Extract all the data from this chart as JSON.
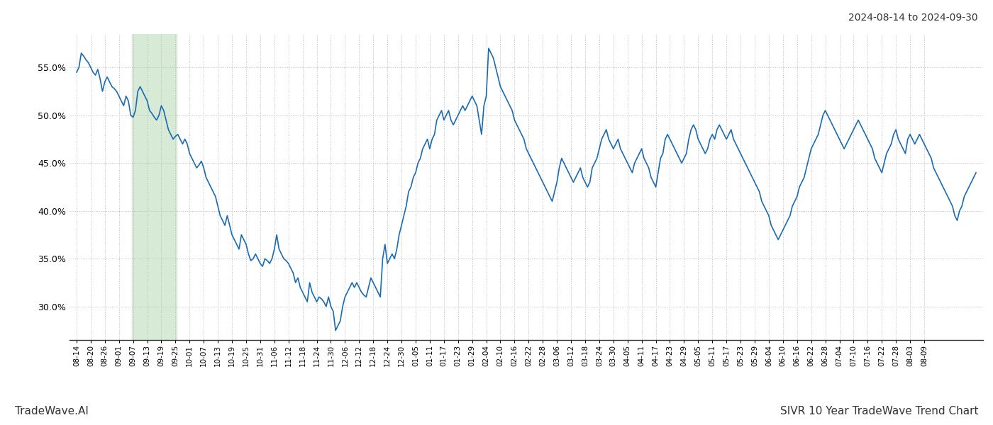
{
  "title_top_right": "2024-08-14 to 2024-09-30",
  "footer_left": "TradeWave.AI",
  "footer_right": "SIVR 10 Year TradeWave Trend Chart",
  "background_color": "#ffffff",
  "line_color": "#1b6bb0",
  "line_width": 1.2,
  "highlight_color": "#d6ead6",
  "ylim": [
    26.5,
    58.5
  ],
  "yticks": [
    30.0,
    35.0,
    40.0,
    45.0,
    50.0,
    55.0
  ],
  "x_labels": [
    "08-14",
    "08-20",
    "08-26",
    "09-01",
    "09-07",
    "09-13",
    "09-19",
    "09-25",
    "10-01",
    "10-07",
    "10-13",
    "10-19",
    "10-25",
    "10-31",
    "11-06",
    "11-12",
    "11-18",
    "11-24",
    "11-30",
    "12-06",
    "12-12",
    "12-18",
    "12-24",
    "12-30",
    "01-05",
    "01-11",
    "01-17",
    "01-23",
    "01-29",
    "02-04",
    "02-10",
    "02-16",
    "02-22",
    "02-28",
    "03-06",
    "03-12",
    "03-18",
    "03-24",
    "03-30",
    "04-05",
    "04-11",
    "04-17",
    "04-23",
    "04-29",
    "05-05",
    "05-11",
    "05-17",
    "05-23",
    "05-29",
    "06-04",
    "06-10",
    "06-16",
    "06-22",
    "06-28",
    "07-04",
    "07-10",
    "07-16",
    "07-22",
    "07-28",
    "08-03",
    "08-09"
  ],
  "values": [
    54.5,
    55.0,
    56.5,
    56.2,
    55.8,
    55.5,
    55.0,
    54.5,
    54.2,
    54.8,
    53.8,
    52.5,
    53.5,
    54.0,
    53.5,
    53.0,
    52.8,
    52.5,
    52.0,
    51.5,
    51.0,
    52.0,
    51.5,
    50.0,
    49.8,
    50.5,
    52.5,
    53.0,
    52.5,
    52.0,
    51.5,
    50.5,
    50.2,
    49.8,
    49.5,
    50.0,
    51.0,
    50.5,
    49.5,
    48.5,
    48.0,
    47.5,
    47.8,
    48.0,
    47.5,
    47.0,
    47.5,
    47.0,
    46.0,
    45.5,
    45.0,
    44.5,
    44.8,
    45.2,
    44.5,
    43.5,
    43.0,
    42.5,
    42.0,
    41.5,
    40.5,
    39.5,
    39.0,
    38.5,
    39.5,
    38.5,
    37.5,
    37.0,
    36.5,
    36.0,
    37.5,
    37.0,
    36.5,
    35.5,
    34.8,
    35.0,
    35.5,
    35.0,
    34.5,
    34.2,
    35.0,
    34.8,
    34.5,
    35.0,
    36.0,
    37.5,
    36.0,
    35.5,
    35.0,
    34.8,
    34.5,
    34.0,
    33.5,
    32.5,
    33.0,
    32.0,
    31.5,
    31.0,
    30.5,
    32.5,
    31.5,
    31.0,
    30.5,
    31.0,
    30.8,
    30.5,
    30.0,
    31.0,
    30.0,
    29.5,
    27.5,
    28.0,
    28.5,
    30.0,
    31.0,
    31.5,
    32.0,
    32.5,
    32.0,
    32.5,
    32.0,
    31.5,
    31.2,
    31.0,
    32.0,
    33.0,
    32.5,
    32.0,
    31.5,
    31.0,
    35.0,
    36.5,
    34.5,
    35.0,
    35.5,
    35.0,
    36.0,
    37.5,
    38.5,
    39.5,
    40.5,
    42.0,
    42.5,
    43.5,
    44.0,
    45.0,
    45.5,
    46.5,
    47.0,
    47.5,
    46.5,
    47.5,
    48.0,
    49.5,
    50.0,
    50.5,
    49.5,
    50.0,
    50.5,
    49.5,
    49.0,
    49.5,
    50.0,
    50.5,
    51.0,
    50.5,
    51.0,
    51.5,
    52.0,
    51.5,
    51.0,
    49.5,
    48.0,
    51.0,
    52.0,
    57.0,
    56.5,
    56.0,
    55.0,
    54.0,
    53.0,
    52.5,
    52.0,
    51.5,
    51.0,
    50.5,
    49.5,
    49.0,
    48.5,
    48.0,
    47.5,
    46.5,
    46.0,
    45.5,
    45.0,
    44.5,
    44.0,
    43.5,
    43.0,
    42.5,
    42.0,
    41.5,
    41.0,
    42.0,
    43.0,
    44.5,
    45.5,
    45.0,
    44.5,
    44.0,
    43.5,
    43.0,
    43.5,
    44.0,
    44.5,
    43.5,
    43.0,
    42.5,
    43.0,
    44.5,
    45.0,
    45.5,
    46.5,
    47.5,
    48.0,
    48.5,
    47.5,
    47.0,
    46.5,
    47.0,
    47.5,
    46.5,
    46.0,
    45.5,
    45.0,
    44.5,
    44.0,
    45.0,
    45.5,
    46.0,
    46.5,
    45.5,
    45.0,
    44.5,
    43.5,
    43.0,
    42.5,
    44.0,
    45.5,
    46.0,
    47.5,
    48.0,
    47.5,
    47.0,
    46.5,
    46.0,
    45.5,
    45.0,
    45.5,
    46.0,
    47.5,
    48.5,
    49.0,
    48.5,
    47.5,
    47.0,
    46.5,
    46.0,
    46.5,
    47.5,
    48.0,
    47.5,
    48.5,
    49.0,
    48.5,
    48.0,
    47.5,
    48.0,
    48.5,
    47.5,
    47.0,
    46.5,
    46.0,
    45.5,
    45.0,
    44.5,
    44.0,
    43.5,
    43.0,
    42.5,
    42.0,
    41.0,
    40.5,
    40.0,
    39.5,
    38.5,
    38.0,
    37.5,
    37.0,
    37.5,
    38.0,
    38.5,
    39.0,
    39.5,
    40.5,
    41.0,
    41.5,
    42.5,
    43.0,
    43.5,
    44.5,
    45.5,
    46.5,
    47.0,
    47.5,
    48.0,
    49.0,
    50.0,
    50.5,
    50.0,
    49.5,
    49.0,
    48.5,
    48.0,
    47.5,
    47.0,
    46.5,
    47.0,
    47.5,
    48.0,
    48.5,
    49.0,
    49.5,
    49.0,
    48.5,
    48.0,
    47.5,
    47.0,
    46.5,
    45.5,
    45.0,
    44.5,
    44.0,
    45.0,
    46.0,
    46.5,
    47.0,
    48.0,
    48.5,
    47.5,
    47.0,
    46.5,
    46.0,
    47.5,
    48.0,
    47.5,
    47.0,
    47.5,
    48.0,
    47.5,
    47.0,
    46.5,
    46.0,
    45.5,
    44.5,
    44.0,
    43.5,
    43.0,
    42.5,
    42.0,
    41.5,
    41.0,
    40.5,
    39.5,
    39.0,
    40.0,
    40.5,
    41.5,
    42.0,
    42.5,
    43.0,
    43.5,
    44.0
  ],
  "highlight_start_label": "09-07",
  "highlight_end_label": "09-25",
  "grid_color": "#bbbbbb",
  "grid_linestyle": ":",
  "tick_label_fontsize": 7.5,
  "footer_fontsize": 11
}
